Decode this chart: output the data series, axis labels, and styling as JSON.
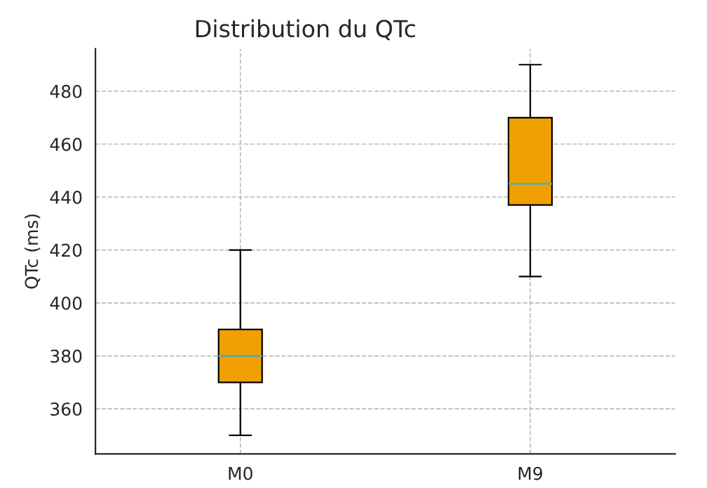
{
  "chart_data": {
    "type": "box",
    "title": "Distribution du QTc",
    "ylabel": "QTc (ms)",
    "categories": [
      "M0",
      "M9"
    ],
    "boxes": [
      {
        "low": 350,
        "q1": 370,
        "median": 380,
        "q3": 390,
        "high": 420
      },
      {
        "low": 410,
        "q1": 437,
        "median": 445,
        "q3": 470,
        "high": 490
      }
    ],
    "color": "#f0a000",
    "ylim": [
      343,
      496
    ],
    "yticks": [
      360,
      380,
      400,
      420,
      440,
      460,
      480
    ],
    "grid": true
  }
}
